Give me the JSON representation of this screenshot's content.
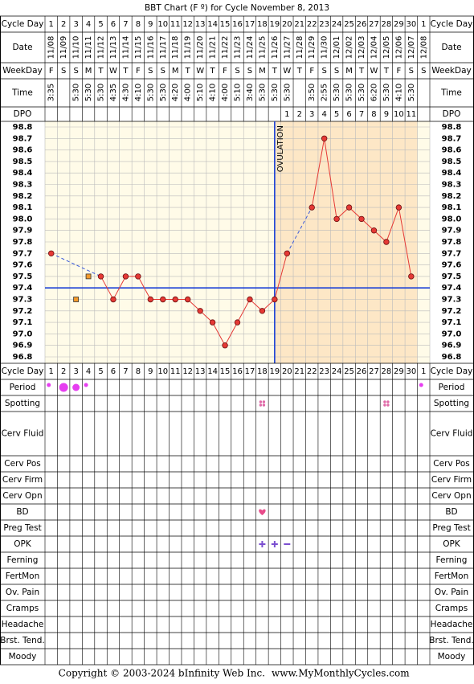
{
  "chart_data": {
    "type": "line",
    "title": "BBT Chart (F º) for Cycle November 8, 2013",
    "top_rows": [
      "Cycle Day",
      "Date",
      "WeekDay",
      "Time",
      "DPO"
    ],
    "cycle_days": [
      1,
      2,
      3,
      4,
      5,
      6,
      7,
      8,
      9,
      10,
      11,
      12,
      13,
      14,
      15,
      16,
      17,
      18,
      19,
      20,
      21,
      22,
      23,
      24,
      25,
      26,
      27,
      28,
      29,
      30,
      1
    ],
    "categories": [
      "11/08",
      "11/09",
      "11/10",
      "11/11",
      "11/12",
      "11/13",
      "11/14",
      "11/15",
      "11/16",
      "11/17",
      "11/18",
      "11/19",
      "11/20",
      "11/21",
      "11/22",
      "11/23",
      "11/24",
      "11/25",
      "11/26",
      "11/27",
      "11/28",
      "11/29",
      "11/30",
      "12/01",
      "12/02",
      "12/03",
      "12/04",
      "12/05",
      "12/06",
      "12/07",
      "12/08"
    ],
    "weekdays": [
      "F",
      "S",
      "S",
      "M",
      "T",
      "W",
      "T",
      "F",
      "S",
      "S",
      "M",
      "T",
      "W",
      "T",
      "F",
      "S",
      "S",
      "M",
      "T",
      "W",
      "T",
      "F",
      "S",
      "S",
      "M",
      "T",
      "W",
      "T",
      "F",
      "S",
      "S"
    ],
    "times": [
      "3:35",
      null,
      "5:30",
      "5:30",
      "5:30",
      "4:35",
      "4:30",
      "4:10",
      "5:30",
      "5:30",
      "4:20",
      "4:00",
      "5:10",
      "4:10",
      "4:00",
      "5:10",
      "3:40",
      "5:30",
      "5:30",
      "5:30",
      null,
      "3:50",
      "2:55",
      "5:30",
      "5:30",
      "5:30",
      "6:20",
      "5:30",
      "4:10",
      "5:30",
      null
    ],
    "dpo": [
      null,
      null,
      null,
      null,
      null,
      null,
      null,
      null,
      null,
      null,
      null,
      null,
      null,
      null,
      null,
      null,
      null,
      null,
      null,
      1,
      2,
      3,
      4,
      5,
      6,
      7,
      8,
      9,
      10,
      11,
      null
    ],
    "values": [
      97.7,
      null,
      null,
      null,
      97.5,
      97.3,
      97.5,
      97.5,
      97.3,
      97.3,
      97.3,
      97.3,
      97.2,
      97.1,
      96.9,
      97.1,
      97.3,
      97.2,
      97.3,
      97.7,
      null,
      98.1,
      98.7,
      98.0,
      98.1,
      98.0,
      97.9,
      97.8,
      98.1,
      97.5,
      null
    ],
    "color": "#e53935",
    "discarded": [
      null,
      null,
      97.3,
      97.5,
      null,
      null,
      null,
      null,
      null,
      null,
      null,
      null,
      null,
      null,
      null,
      null,
      null,
      null,
      null,
      null,
      null,
      null,
      null,
      null,
      null,
      null,
      null,
      null,
      null,
      null,
      null
    ],
    "discarded_color": "#f39a2b",
    "coverline": 97.4,
    "ovulation": {
      "label": "OVULATION",
      "day": 19
    },
    "ylim": [
      96.8,
      98.8
    ],
    "yticks": [
      96.8,
      96.9,
      {
        "value": 97,
        "label": "97.0"
      },
      97.1,
      97.2,
      97.3,
      97.4,
      97.5,
      97.6,
      97.7,
      97.8,
      97.9,
      {
        "value": 98,
        "label": "98.0"
      },
      98.1,
      98.2,
      98.3,
      98.4,
      98.5,
      98.6,
      98.7,
      98.8
    ],
    "grid": true,
    "tracker_rows": [
      "Cycle Day",
      "Period",
      "Spotting",
      "Cerv Fluid",
      "Cerv Pos",
      "Cerv Firm",
      "Cerv Opn",
      "BD",
      "Preg Test",
      "OPK",
      "Ferning",
      "FertMon",
      "Ov. Pain",
      "Cramps",
      "Headache",
      "Brst. Tend.",
      "Moody"
    ],
    "copyright": "Copyright © 2003-2024 bInfinity Web Inc.",
    "website": "www.MyMonthlyCycles.com"
  }
}
